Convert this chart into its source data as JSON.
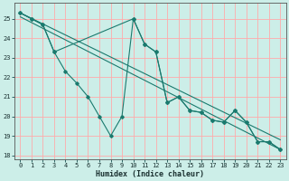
{
  "xlabel": "Humidex (Indice chaleur)",
  "background_color": "#cceee8",
  "grid_color": "#ffaaaa",
  "line_color": "#1a7a6e",
  "xlim": [
    -0.5,
    23.5
  ],
  "ylim": [
    17.8,
    25.8
  ],
  "yticks": [
    18,
    19,
    20,
    21,
    22,
    23,
    24,
    25
  ],
  "xticks": [
    0,
    1,
    2,
    3,
    4,
    5,
    6,
    7,
    8,
    9,
    10,
    11,
    12,
    13,
    14,
    15,
    16,
    17,
    18,
    19,
    20,
    21,
    22,
    23
  ],
  "series1_x": [
    0,
    1,
    2,
    3,
    4,
    5,
    6,
    7,
    8,
    9,
    10,
    11,
    12,
    13,
    14,
    15,
    16,
    17,
    18,
    19,
    20,
    21,
    22,
    23
  ],
  "series1_y": [
    25.3,
    25.0,
    24.7,
    23.3,
    22.3,
    21.7,
    21.0,
    20.0,
    19.0,
    20.0,
    25.0,
    23.7,
    23.3,
    20.7,
    21.0,
    20.3,
    20.2,
    19.8,
    19.7,
    20.3,
    19.7,
    18.7,
    18.7,
    18.3
  ],
  "series2_x": [
    0,
    1,
    2,
    3,
    10,
    11,
    12,
    13,
    14,
    15,
    16,
    17,
    18,
    19,
    20,
    21,
    22,
    23
  ],
  "series2_y": [
    25.3,
    25.0,
    24.7,
    23.3,
    25.0,
    23.7,
    23.3,
    20.7,
    21.0,
    20.3,
    20.2,
    19.8,
    19.7,
    20.3,
    19.7,
    18.7,
    18.7,
    18.3
  ],
  "line1_x": [
    0,
    23
  ],
  "line1_y": [
    25.3,
    18.8
  ],
  "line2_x": [
    0,
    23
  ],
  "line2_y": [
    25.1,
    18.3
  ]
}
